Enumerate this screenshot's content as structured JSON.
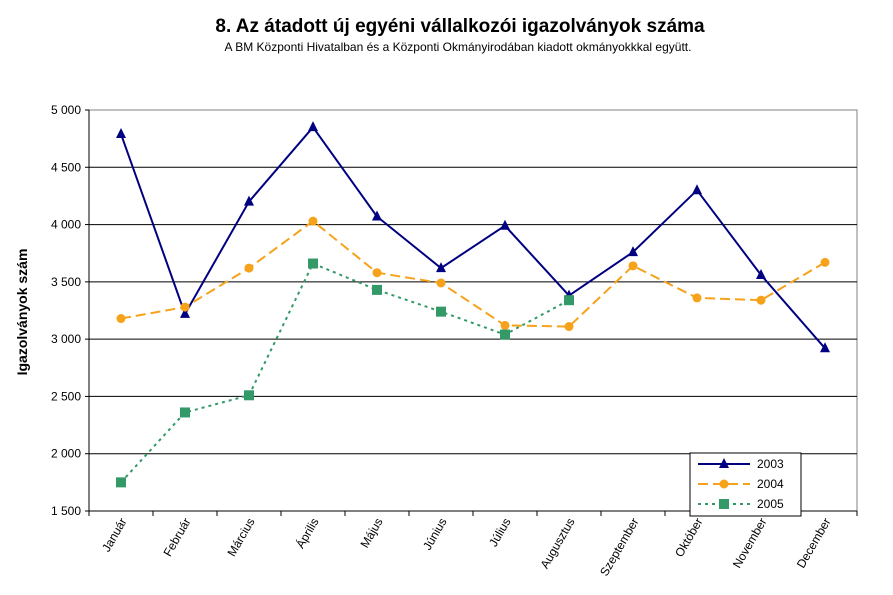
{
  "chart_data": {
    "type": "line",
    "title": "8. Az átadott új egyéni vállalkozói  igazolványok száma",
    "subtitle": "A BM Központi Hivatalban és a Központi Okmányirodában kiadott okmányokkkal együtt.",
    "xlabel": "",
    "ylabel": "Igazolványok szám",
    "ylim": [
      1500,
      5000
    ],
    "yticks": [
      1500,
      2000,
      2500,
      3000,
      3500,
      4000,
      4500,
      5000
    ],
    "ytick_labels": [
      "1 500",
      "2 000",
      "2 500",
      "3 000",
      "3 500",
      "4 000",
      "4 500",
      "5 000"
    ],
    "grid": "horizontal",
    "legend_position": "bottom-right",
    "categories": [
      "Január",
      "Február",
      "Március",
      "Április",
      "Május",
      "Június",
      "Július",
      "Augusztus",
      "Szeptember",
      "Október",
      "November",
      "December"
    ],
    "series": [
      {
        "name": "2003",
        "color": "#000080",
        "marker": "triangle",
        "dash": "solid",
        "values": [
          4790,
          3220,
          4200,
          4850,
          4070,
          3620,
          3990,
          3380,
          3760,
          4300,
          3560,
          2920
        ]
      },
      {
        "name": "2004",
        "color": "#F7A21B",
        "marker": "circle",
        "dash": "dashed",
        "values": [
          3180,
          3280,
          3620,
          4030,
          3580,
          3490,
          3120,
          3110,
          3640,
          3360,
          3340,
          3670
        ]
      },
      {
        "name": "2005",
        "color": "#339966",
        "marker": "square",
        "dash": "dotted",
        "values": [
          1750,
          2360,
          2510,
          3660,
          3430,
          3240,
          3040,
          3340,
          null,
          null,
          null,
          null
        ]
      }
    ]
  }
}
